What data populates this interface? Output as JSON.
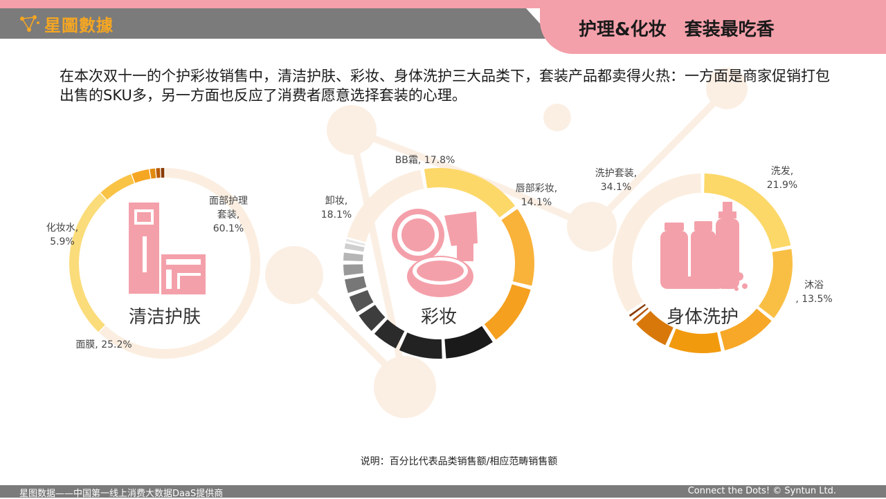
{
  "header": {
    "logo_text": "星圖數據",
    "title": "护理&化妆　套装最吃香"
  },
  "intro_text": "在本次双十一的个护彩妆销售中，清洁护肤、彩妆、身体洗护三大品类下，套装产品都卖得火热：一方面是商家促销打包出售的SKU多，另一方面也反应了消费者愿意选择套装的心理。",
  "note": "说明：百分比代表品类销售额/相应范畴销售额",
  "footer": {
    "left": "星图数据——中国第一线上消费大数据DaaS提供商",
    "right": "Connect the Dots! © Syntun Ltd."
  },
  "colors": {
    "pink": "#f4a0aa",
    "gray_bar": "#7b7b7b",
    "logo": "#f5a623"
  },
  "chart_data": [
    {
      "type": "pie",
      "center_label": "清洁护肤",
      "icon": "skincare-bottle-icon",
      "slices": [
        {
          "name": "面部护理套装",
          "label": "面部护理\n套装,\n60.1%",
          "value": 60.1,
          "color": "#fbeee0"
        },
        {
          "name": "面膜",
          "label": "面膜, 25.2%",
          "value": 25.2,
          "color": "#fbdc7a"
        },
        {
          "name": "化妆水",
          "label": "化妆水,\n5.9%",
          "value": 5.9,
          "color": "#f9c346"
        },
        {
          "name": "",
          "label": "",
          "value": 3.0,
          "color": "#f5a623"
        },
        {
          "name": "",
          "label": "",
          "value": 1.0,
          "color": "#e08a10"
        },
        {
          "name": "",
          "label": "",
          "value": 0.8,
          "color": "#b85c0a"
        },
        {
          "name": "",
          "label": "",
          "value": 0.7,
          "color": "#8a3b05"
        }
      ]
    },
    {
      "type": "pie",
      "center_label": "彩妆",
      "icon": "makeup-compact-icon",
      "slices": [
        {
          "name": "BB霜",
          "label": "BB霜, 17.8%",
          "value": 17.8,
          "color": "#fcd869"
        },
        {
          "name": "唇部彩妆",
          "label": "唇部彩妆,\n14.1%",
          "value": 14.1,
          "color": "#f9b23a"
        },
        {
          "name": "",
          "label": "",
          "value": 11.0,
          "color": "#f5a01e"
        },
        {
          "name": "",
          "label": "",
          "value": 9.0,
          "color": "#1a1a1a"
        },
        {
          "name": "",
          "label": "",
          "value": 8.0,
          "color": "#222222"
        },
        {
          "name": "",
          "label": "",
          "value": 5.0,
          "color": "#2b2b2b"
        },
        {
          "name": "",
          "label": "",
          "value": 4.0,
          "color": "#3d3d3d"
        },
        {
          "name": "",
          "label": "",
          "value": 3.5,
          "color": "#555555"
        },
        {
          "name": "",
          "label": "",
          "value": 3.0,
          "color": "#777777"
        },
        {
          "name": "",
          "label": "",
          "value": 2.5,
          "color": "#999999"
        },
        {
          "name": "",
          "label": "",
          "value": 2.0,
          "color": "#b5b5b5"
        },
        {
          "name": "",
          "label": "",
          "value": 1.6,
          "color": "#cfcfcf"
        },
        {
          "name": "",
          "label": "",
          "value": 0.4,
          "color": "#e5e5e5"
        },
        {
          "name": "卸妆",
          "label": "卸妆,\n18.1%",
          "value": 18.1,
          "color": "#fbeee0"
        }
      ]
    },
    {
      "type": "pie",
      "center_label": "身体洗护",
      "icon": "body-wash-bottles-icon",
      "slices": [
        {
          "name": "洗发",
          "label": "洗发,\n21.9%",
          "value": 21.9,
          "color": "#fcd869"
        },
        {
          "name": "沐浴",
          "label": "沐浴\n, 13.5%",
          "value": 13.5,
          "color": "#f9bf45"
        },
        {
          "name": "",
          "label": "",
          "value": 10.5,
          "color": "#f7a828"
        },
        {
          "name": "",
          "label": "",
          "value": 10.0,
          "color": "#f29a0e"
        },
        {
          "name": "",
          "label": "",
          "value": 7.0,
          "color": "#d8780a"
        },
        {
          "name": "",
          "label": "",
          "value": 1.0,
          "color": "#b3540a"
        },
        {
          "name": "",
          "label": "",
          "value": 1.0,
          "color": "#8a3b05"
        },
        {
          "name": "洗护套装",
          "label": "洗护套装,\n34.1%",
          "value": 34.1,
          "color": "#fbeee0"
        }
      ]
    }
  ]
}
